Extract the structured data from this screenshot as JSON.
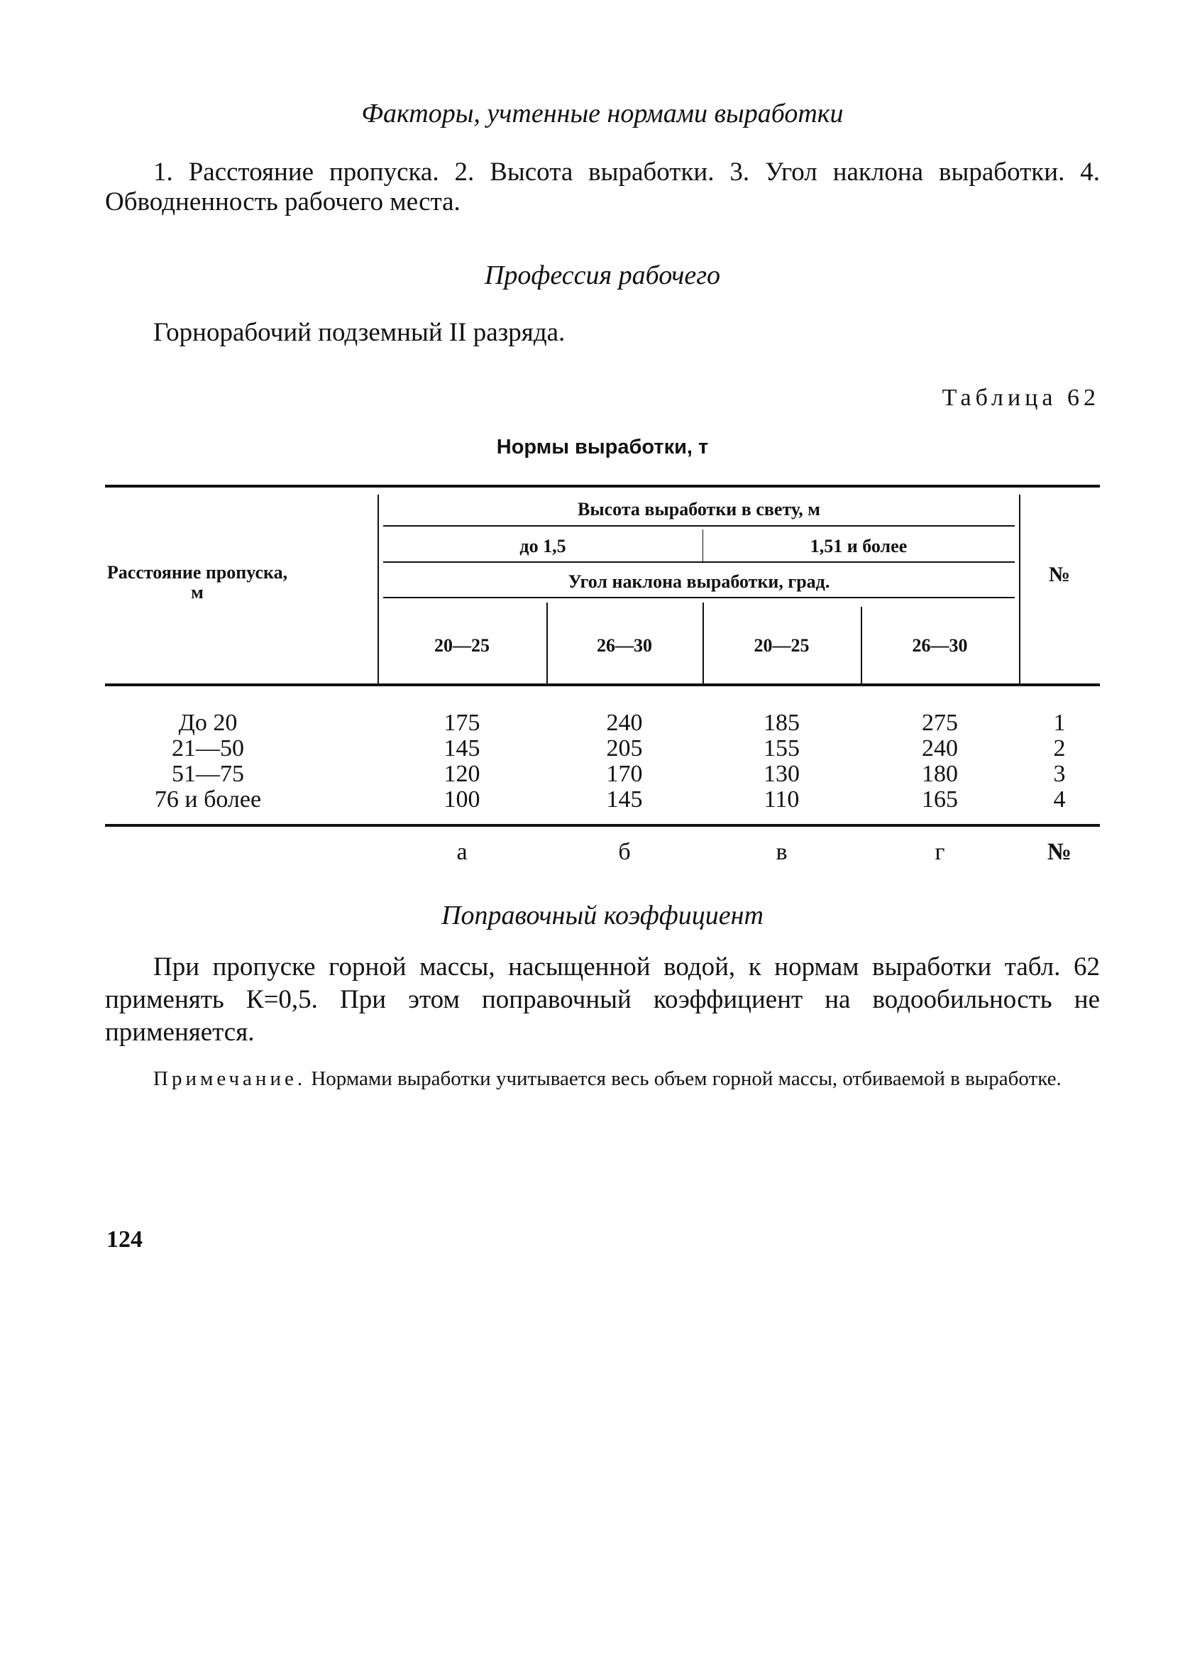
{
  "heading_factors": "Факторы, учтенные нормами выработки",
  "factors_text": "1. Расстояние пропуска. 2. Высота выработки. 3. Угол наклона выработки. 4. Обводненность рабочего места.",
  "heading_profession": "Профессия рабочего",
  "profession_text": "Горнорабочий подземный II разряда.",
  "table_number": "Таблица 62",
  "table_title": "Нормы выработки, т",
  "table": {
    "row_header": "Расстояние пропуска, м",
    "height_header": "Высота выработки в свету, м",
    "height_groups": [
      "до 1,5",
      "1,51 и более"
    ],
    "angle_header": "Угол наклона выработки, град.",
    "angle_columns": [
      "20—25",
      "26—30",
      "20—25",
      "26—30"
    ],
    "num_header": "№",
    "rows": [
      {
        "label": "До 20",
        "values": [
          "175",
          "240",
          "185",
          "275"
        ],
        "num": "1"
      },
      {
        "label": "21—50",
        "values": [
          "145",
          "205",
          "155",
          "240"
        ],
        "num": "2"
      },
      {
        "label": "51—75",
        "values": [
          "120",
          "170",
          "130",
          "180"
        ],
        "num": "3"
      },
      {
        "label": "76 и более",
        "values": [
          "100",
          "145",
          "110",
          "165"
        ],
        "num": "4"
      }
    ],
    "column_letters": [
      "а",
      "б",
      "в",
      "г"
    ],
    "footer_num": "№"
  },
  "heading_correction": "Поправочный коэффициент",
  "correction_text": "При пропуске горной массы, насыщенной водой, к нормам выработки табл. 62 применять К=0,5. При этом поправочный коэффициент на водообильность не применяется.",
  "note_label": "Примечание.",
  "note_text": " Нормами выработки учитывается весь объем горной массы, отбиваемой в выработке.",
  "page_number": "124"
}
